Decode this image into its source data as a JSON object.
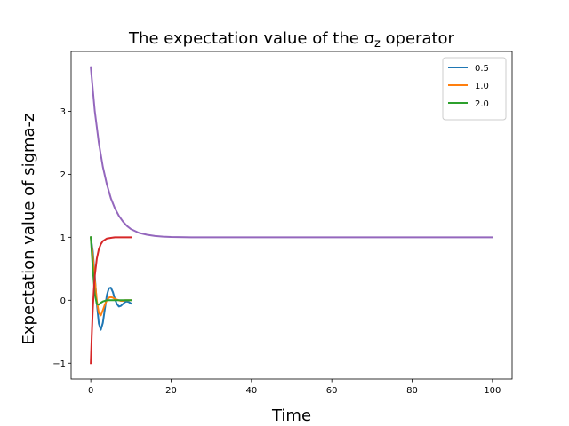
{
  "chart_data": {
    "type": "line",
    "title": "The expectation value of the σz operator",
    "xlabel": "Time",
    "ylabel": "Expectation value of sigma-z",
    "xlim": [
      -4.9,
      104.9
    ],
    "ylim": [
      -1.25,
      3.95
    ],
    "xticks": [
      0,
      20,
      40,
      60,
      80,
      100
    ],
    "yticks": [
      -1,
      0,
      1,
      2,
      3
    ],
    "grid": false,
    "legend_position": "top-right",
    "series": [
      {
        "name": "0.5",
        "color": "#1f77b4",
        "x": [
          0,
          0.5,
          1,
          1.5,
          2,
          2.5,
          3,
          3.5,
          4,
          4.5,
          5,
          5.5,
          6,
          6.5,
          7,
          7.5,
          8,
          8.5,
          9,
          9.5,
          10
        ],
        "y": [
          1.0,
          0.78,
          0.38,
          -0.05,
          -0.37,
          -0.47,
          -0.36,
          -0.14,
          0.08,
          0.19,
          0.2,
          0.13,
          0.02,
          -0.06,
          -0.1,
          -0.09,
          -0.06,
          -0.03,
          -0.02,
          -0.03,
          -0.05
        ]
      },
      {
        "name": "1.0",
        "color": "#ff7f0e",
        "x": [
          0,
          0.5,
          1,
          1.5,
          2,
          2.5,
          3,
          3.5,
          4,
          4.5,
          5,
          5.5,
          6,
          6.5,
          7,
          7.5,
          8,
          8.5,
          9,
          9.5,
          10
        ],
        "y": [
          1.0,
          0.7,
          0.33,
          -0.01,
          -0.2,
          -0.24,
          -0.16,
          -0.07,
          0.0,
          0.04,
          0.05,
          0.04,
          0.02,
          0.01,
          0.0,
          -0.01,
          -0.01,
          0.0,
          0.0,
          0.0,
          0.0
        ]
      },
      {
        "name": "2.0",
        "color": "#2ca02c",
        "x": [
          0,
          0.5,
          1,
          1.5,
          2,
          2.5,
          3,
          3.5,
          4,
          4.5,
          5,
          5.5,
          6,
          6.5,
          7,
          7.5,
          8,
          8.5,
          9,
          9.5,
          10
        ],
        "y": [
          1.0,
          0.5,
          0.1,
          -0.06,
          -0.07,
          -0.04,
          -0.02,
          -0.01,
          0.0,
          0.0,
          0.0,
          0.0,
          0.0,
          0.0,
          0.0,
          0.0,
          0.0,
          0.0,
          0.0,
          0.0,
          0.0
        ]
      },
      {
        "color": "#d62728",
        "x": [
          0,
          0.25,
          0.5,
          0.75,
          1,
          1.5,
          2,
          2.5,
          3,
          3.5,
          4,
          5,
          6,
          7,
          8,
          9,
          10
        ],
        "y": [
          -1.0,
          -0.55,
          -0.15,
          0.15,
          0.39,
          0.66,
          0.81,
          0.89,
          0.94,
          0.96,
          0.98,
          0.99,
          1.0,
          1.0,
          1.0,
          1.0,
          1.0
        ]
      },
      {
        "color": "#9467bd",
        "x": [
          0,
          1,
          2,
          3,
          4,
          5,
          6,
          7,
          8,
          9,
          10,
          12,
          14,
          16,
          18,
          20,
          25,
          30,
          40,
          60,
          80,
          100
        ],
        "y": [
          3.7,
          3.0,
          2.5,
          2.12,
          1.84,
          1.62,
          1.46,
          1.34,
          1.25,
          1.18,
          1.13,
          1.07,
          1.04,
          1.02,
          1.01,
          1.005,
          1.0,
          1.0,
          1.0,
          1.0,
          1.0,
          1.0
        ]
      }
    ]
  }
}
